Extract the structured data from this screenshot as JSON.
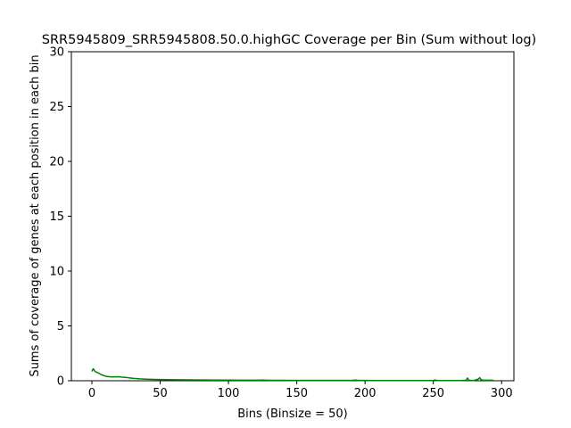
{
  "chart_data": {
    "type": "line",
    "title": "SRR5945809_SRR5945808.50.0.highGC Coverage per Bin (Sum without log)",
    "xlabel": "Bins (Binsize = 50)",
    "ylabel": "Sums of coverage of genes at each position in each bin",
    "xlim": [
      -15,
      309
    ],
    "ylim": [
      0,
      30
    ],
    "xticks": [
      0,
      50,
      100,
      150,
      200,
      250,
      300
    ],
    "yticks": [
      0,
      5,
      10,
      15,
      20,
      25,
      30
    ],
    "grid": false,
    "series": [
      {
        "color": "#008000",
        "x": [
          0,
          1,
          2,
          3,
          5,
          7,
          10,
          12,
          15,
          18,
          20,
          22,
          25,
          28,
          30,
          35,
          40,
          45,
          50,
          60,
          70,
          80,
          90,
          100,
          110,
          120,
          125,
          128,
          130,
          140,
          150,
          160,
          170,
          180,
          190,
          193,
          195,
          200,
          210,
          220,
          230,
          240,
          250,
          251,
          253,
          260,
          270,
          274,
          275,
          276,
          278,
          280,
          283,
          284,
          285,
          287,
          290,
          292,
          294
        ],
        "y": [
          0.85,
          1.1,
          0.9,
          0.8,
          0.7,
          0.55,
          0.42,
          0.38,
          0.35,
          0.36,
          0.37,
          0.33,
          0.3,
          0.25,
          0.22,
          0.17,
          0.14,
          0.12,
          0.11,
          0.09,
          0.08,
          0.07,
          0.065,
          0.06,
          0.055,
          0.05,
          0.06,
          0.05,
          0.04,
          0.04,
          0.035,
          0.035,
          0.03,
          0.03,
          0.03,
          0.06,
          0.03,
          0.03,
          0.025,
          0.025,
          0.025,
          0.02,
          0.02,
          0.07,
          0.02,
          0.02,
          0.02,
          0.05,
          0.25,
          0.05,
          0.03,
          0.03,
          0.15,
          0.28,
          0.08,
          0.05,
          0.05,
          0.05,
          0.04
        ]
      }
    ]
  }
}
